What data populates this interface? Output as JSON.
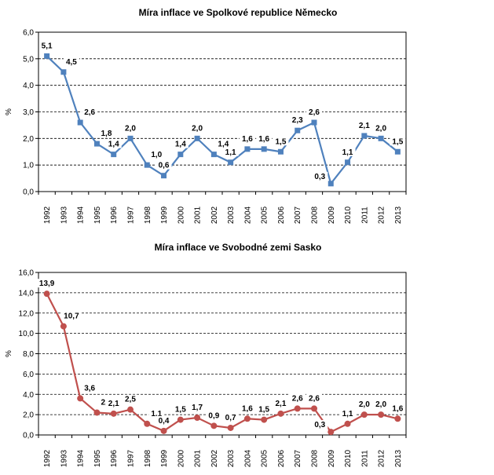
{
  "chart_data": [
    {
      "type": "line",
      "title": "Míra inflace ve Spolkové republice Německo",
      "xlabel": "",
      "ylabel": "%",
      "ylim": [
        0,
        6
      ],
      "ystep": 1,
      "yticks": [
        "0,0",
        "1,0",
        "2,0",
        "3,0",
        "4,0",
        "5,0",
        "6,0"
      ],
      "grid": true,
      "marker": "square",
      "color": "#4F81BD",
      "categories": [
        "1992",
        "1993",
        "1994",
        "1995",
        "1996",
        "1997",
        "1998",
        "1999",
        "2000",
        "2001",
        "2002",
        "2003",
        "2004",
        "2005",
        "2006",
        "2007",
        "2008",
        "2009",
        "2010",
        "2011",
        "2012",
        "2013"
      ],
      "values": [
        5.1,
        4.5,
        2.6,
        1.8,
        1.4,
        2.0,
        1.0,
        0.6,
        1.4,
        2.0,
        1.4,
        1.1,
        1.6,
        1.6,
        1.5,
        2.3,
        2.6,
        0.3,
        1.1,
        2.1,
        2.0,
        1.5
      ],
      "labels": [
        "5,1",
        "4,5",
        "2,6",
        "1,8",
        "1,4",
        "2,0",
        "1,0",
        "0,6",
        "1,4",
        "2,0",
        "1,4",
        "1,1",
        "1,6",
        "1,6",
        "1,5",
        "2,3",
        "2,6",
        "0,3",
        "1,1",
        "2,1",
        "2,0",
        "1,5"
      ]
    },
    {
      "type": "line",
      "title": "Míra inflace ve Svobodné zemi Sasko",
      "xlabel": "",
      "ylabel": "%",
      "ylim": [
        0,
        16
      ],
      "ystep": 2,
      "yticks": [
        "0,0",
        "2,0",
        "4,0",
        "6,0",
        "8,0",
        "10,0",
        "12,0",
        "14,0",
        "16,0"
      ],
      "grid": true,
      "marker": "circle",
      "color": "#C0504D",
      "categories": [
        "1992",
        "1993",
        "1994",
        "1995",
        "1996",
        "1997",
        "1998",
        "1999",
        "2000",
        "2001",
        "2002",
        "2003",
        "2004",
        "2005",
        "2006",
        "2007",
        "2008",
        "2009",
        "2010",
        "2011",
        "2012",
        "2013"
      ],
      "values": [
        13.9,
        10.7,
        3.6,
        2.2,
        2.1,
        2.5,
        1.1,
        0.4,
        1.5,
        1.7,
        0.9,
        0.7,
        1.6,
        1.5,
        2.1,
        2.6,
        2.6,
        0.3,
        1.1,
        2.0,
        2.0,
        1.6
      ],
      "labels": [
        "13,9",
        "10,7",
        "3,6",
        "2,2",
        "2,1",
        "2,5",
        "1,1",
        "0,4",
        "1,5",
        "1,7",
        "0,9",
        "0,7",
        "1,6",
        "1,5",
        "2,1",
        "2,6",
        "2,6",
        "0,3",
        "1,1",
        "2,0",
        "2,0",
        "1,6"
      ]
    }
  ]
}
